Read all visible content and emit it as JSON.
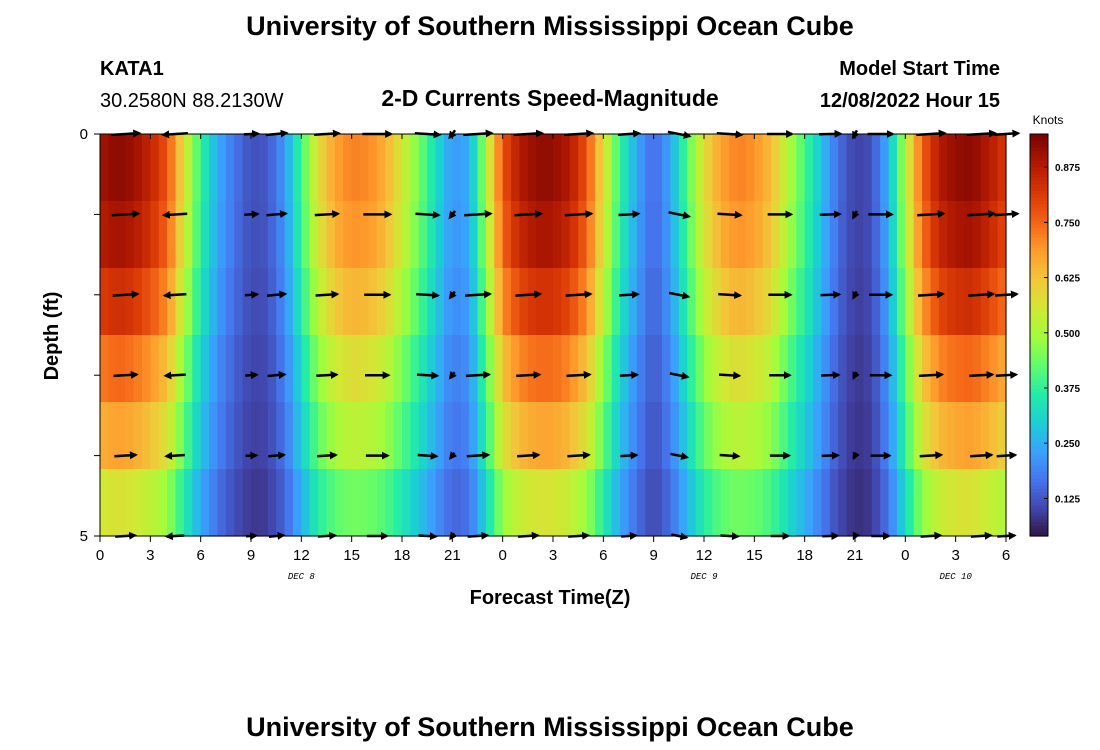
{
  "page_title": "University of Southern Mississippi Ocean Cube",
  "footer_title": "University of Southern Mississippi Ocean Cube",
  "station": {
    "name": "KATA1",
    "coords": "30.2580N  88.2130W"
  },
  "model": {
    "label": "Model Start Time",
    "time": "12/08/2022 Hour 15"
  },
  "chart_data": {
    "type": "heatmap",
    "title": "2-D Currents Speed-Magnitude",
    "xlabel": "Forecast Time(Z)",
    "ylabel": "Depth (ft)",
    "colorbar_label": "Knots",
    "xlim": [
      0,
      54
    ],
    "ylim": [
      0,
      5
    ],
    "x_ticks": [
      0,
      3,
      6,
      9,
      12,
      15,
      18,
      21,
      24,
      27,
      30,
      33,
      36,
      39,
      42,
      45,
      48,
      51,
      54
    ],
    "x_tick_labels": [
      "0",
      "3",
      "6",
      "9",
      "12",
      "15",
      "18",
      "21",
      "0",
      "3",
      "6",
      "9",
      "12",
      "15",
      "18",
      "21",
      "0",
      "3",
      "6"
    ],
    "y_ticks": [
      0,
      1,
      2,
      3,
      4,
      5
    ],
    "y_tick_labels": [
      "0",
      "",
      "",
      "",
      "",
      "5"
    ],
    "day_labels": [
      {
        "x": 12,
        "label": "DEC 8"
      },
      {
        "x": 36,
        "label": "DEC 9"
      },
      {
        "x": 51,
        "label": "DEC 10"
      }
    ],
    "colorbar_range": [
      0.04,
      0.95
    ],
    "colorbar_ticks": [
      0.125,
      0.25,
      0.375,
      0.5,
      0.625,
      0.75,
      0.875
    ],
    "colorbar_tick_labels": [
      "0.125",
      "0.250",
      "0.375",
      "0.500",
      "0.625",
      "0.750",
      "0.875"
    ],
    "colormap": [
      "#30123b",
      "#4145ab",
      "#4675ed",
      "#39a2fc",
      "#1bcfd4",
      "#24eca6",
      "#61fc6c",
      "#a4fc3b",
      "#d1e834",
      "#f3c63a",
      "#fe9b2d",
      "#f36315",
      "#d93806",
      "#b11901",
      "#7a0402"
    ],
    "speed_time_profile": [
      [
        0,
        0.9
      ],
      [
        1,
        0.93
      ],
      [
        2,
        0.91
      ],
      [
        3,
        0.86
      ],
      [
        4,
        0.78
      ],
      [
        5,
        0.58
      ],
      [
        6,
        0.38
      ],
      [
        7,
        0.25
      ],
      [
        8,
        0.17
      ],
      [
        9,
        0.12
      ],
      [
        10,
        0.13
      ],
      [
        11,
        0.22
      ],
      [
        12,
        0.4
      ],
      [
        13,
        0.58
      ],
      [
        14,
        0.68
      ],
      [
        15,
        0.72
      ],
      [
        16,
        0.71
      ],
      [
        17,
        0.66
      ],
      [
        18,
        0.56
      ],
      [
        19,
        0.45
      ],
      [
        20,
        0.33
      ],
      [
        21,
        0.22
      ],
      [
        22,
        0.25
      ],
      [
        23,
        0.5
      ],
      [
        24,
        0.78
      ],
      [
        25,
        0.88
      ],
      [
        26,
        0.92
      ],
      [
        27,
        0.92
      ],
      [
        28,
        0.88
      ],
      [
        29,
        0.78
      ],
      [
        30,
        0.58
      ],
      [
        31,
        0.38
      ],
      [
        32,
        0.24
      ],
      [
        33,
        0.15
      ],
      [
        34,
        0.24
      ],
      [
        35,
        0.42
      ],
      [
        36,
        0.58
      ],
      [
        37,
        0.68
      ],
      [
        38,
        0.72
      ],
      [
        39,
        0.7
      ],
      [
        40,
        0.64
      ],
      [
        41,
        0.52
      ],
      [
        42,
        0.4
      ],
      [
        43,
        0.28
      ],
      [
        44,
        0.16
      ],
      [
        45,
        0.1
      ],
      [
        46,
        0.12
      ],
      [
        47,
        0.26
      ],
      [
        48,
        0.52
      ],
      [
        49,
        0.76
      ],
      [
        50,
        0.88
      ],
      [
        51,
        0.92
      ],
      [
        52,
        0.93
      ],
      [
        53,
        0.88
      ],
      [
        54,
        0.82
      ]
    ],
    "depth_factors": [
      1.0,
      0.97,
      0.9,
      0.8,
      0.72,
      0.6
    ],
    "arrow_times": [
      1.5,
      4.5,
      9,
      10.5,
      13.5,
      16.5,
      19.5,
      21,
      22.5,
      25.5,
      28.5,
      31.5,
      34.5,
      37.5,
      40.5,
      43.5,
      45,
      46.5,
      49.5,
      52.5,
      54
    ],
    "arrow_depths": [
      0,
      1,
      2,
      3,
      4,
      5
    ],
    "arrow_direction_deg": [
      80,
      260,
      80,
      75,
      80,
      90,
      100,
      195,
      80,
      80,
      80,
      80,
      120,
      100,
      90,
      85,
      190,
      90,
      80,
      80,
      80
    ],
    "arrow_length_knots": [
      0.8,
      0.7,
      0.4,
      0.6,
      0.7,
      0.8,
      0.7,
      0.6,
      0.8,
      0.8,
      0.8,
      0.6,
      0.7,
      0.7,
      0.7,
      0.6,
      0.6,
      0.7,
      0.8,
      0.8,
      0.7
    ]
  }
}
